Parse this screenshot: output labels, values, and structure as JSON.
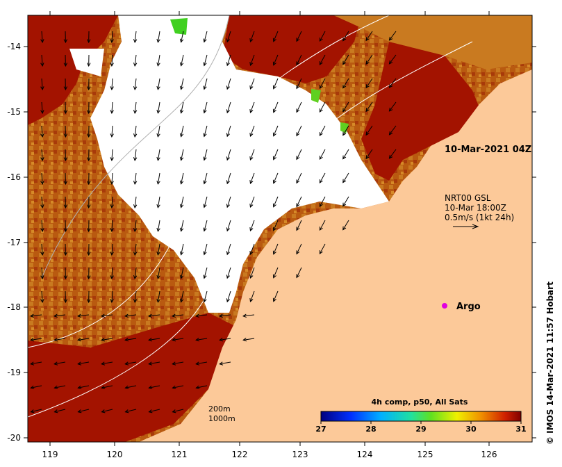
{
  "map": {
    "lon_ticks": [
      "119",
      "120",
      "121",
      "122",
      "123",
      "124",
      "125",
      "126"
    ],
    "lat_ticks": [
      "-14",
      "-15",
      "-16",
      "-17",
      "-18",
      "-19",
      "-20"
    ],
    "timestamp_label": "10-Mar-2021 04Z",
    "currents": {
      "line1": "NRT00 GSL",
      "line2": "10-Mar 18:00Z",
      "line3": "0.5m/s (1kt 24h)"
    },
    "argo_label": "Argo",
    "contours": {
      "line1": "200m",
      "line2": "1000m"
    },
    "colorbar": {
      "title": "4h comp, p50, All Sats",
      "ticks": [
        "27",
        "28",
        "29",
        "30",
        "31"
      ],
      "range": [
        27,
        31
      ]
    },
    "credit": "© IMOS 14-Mar-2021 11:57 Hobart",
    "colors": {
      "land": "#fcc999",
      "no_data": "#ffffff",
      "warm": "#a31300",
      "mid": "#c96a10",
      "argo": "#e000e0"
    }
  }
}
